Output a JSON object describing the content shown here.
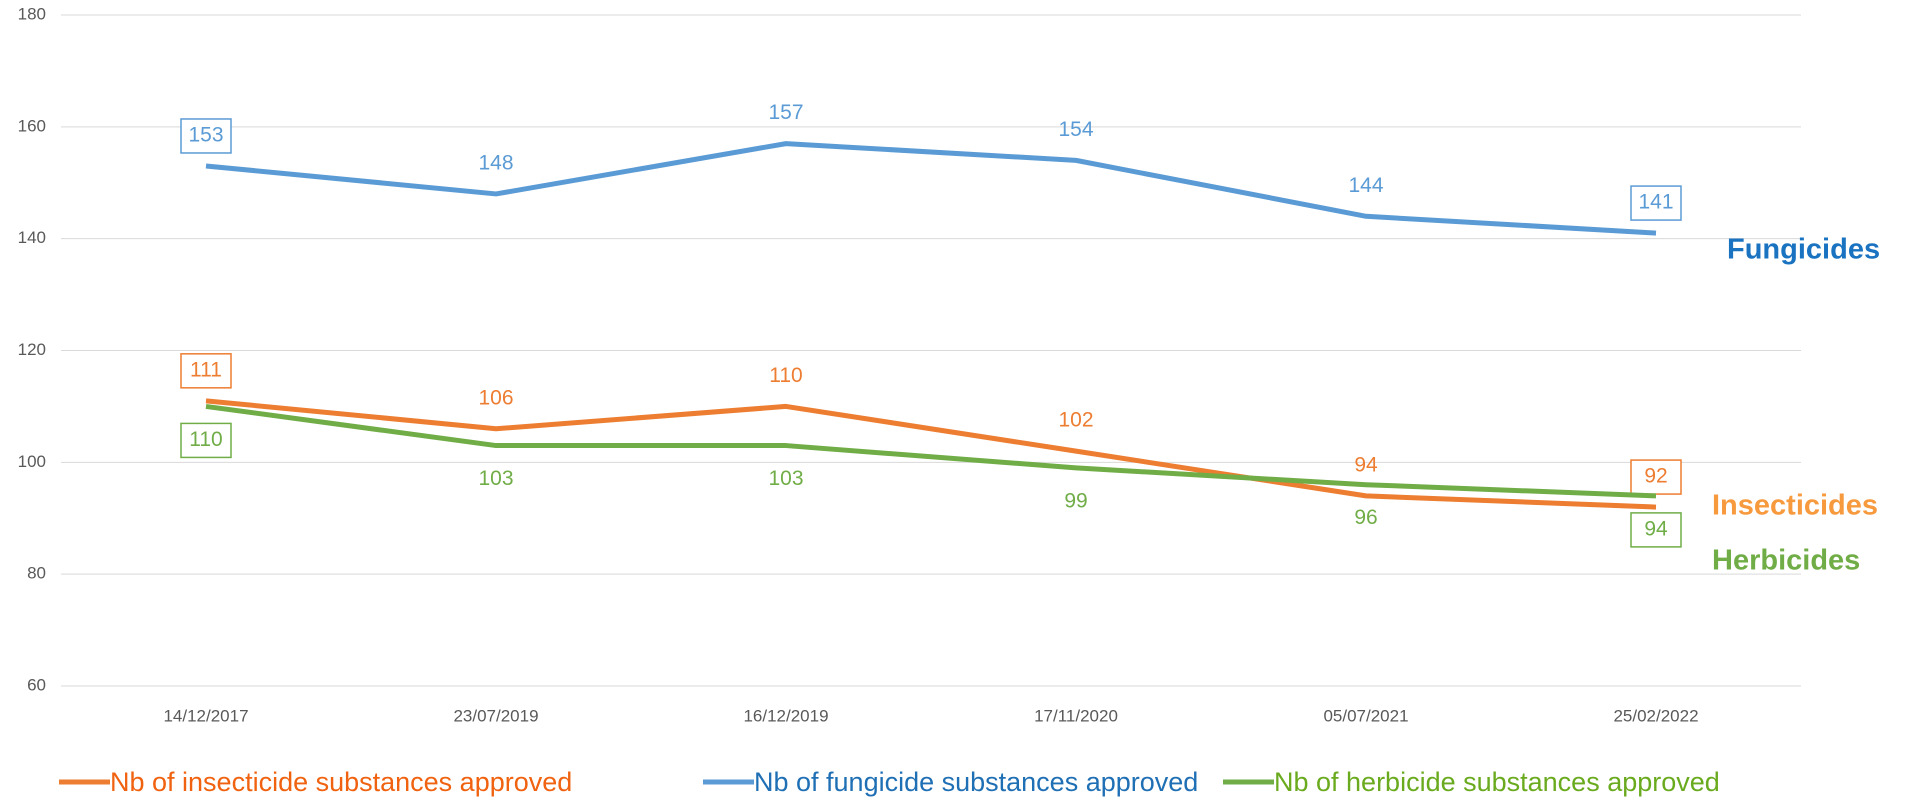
{
  "chart_data": {
    "type": "line",
    "categories": [
      "14/12/2017",
      "23/07/2019",
      "16/12/2019",
      "17/11/2020",
      "05/07/2021",
      "25/02/2022"
    ],
    "series": [
      {
        "name": "Nb of insecticide substances approved",
        "color": "#ed7d31",
        "values": [
          111,
          106,
          110,
          102,
          94,
          92
        ]
      },
      {
        "name": "Nb of fungicide substances approved",
        "color": "#5b9bd5",
        "values": [
          153,
          148,
          157,
          154,
          144,
          141
        ]
      },
      {
        "name": "Nb of herbicide substances approved",
        "color": "#70ad47",
        "values": [
          110,
          103,
          103,
          99,
          96,
          94
        ]
      }
    ],
    "legend_colors": [
      "#f0620f",
      "#1f6fb5",
      "#6aaa1e"
    ],
    "annotations": [
      {
        "text": "Insecticides",
        "color": "#f79a3e"
      },
      {
        "text": "Fungicides",
        "color": "#1a73c0"
      },
      {
        "text": "Herbicides",
        "color": "#70ad47"
      }
    ],
    "ylim": [
      60,
      180
    ],
    "yticks": [
      60,
      80,
      100,
      120,
      140,
      160,
      180
    ],
    "grid": true,
    "legend": "bottom"
  }
}
